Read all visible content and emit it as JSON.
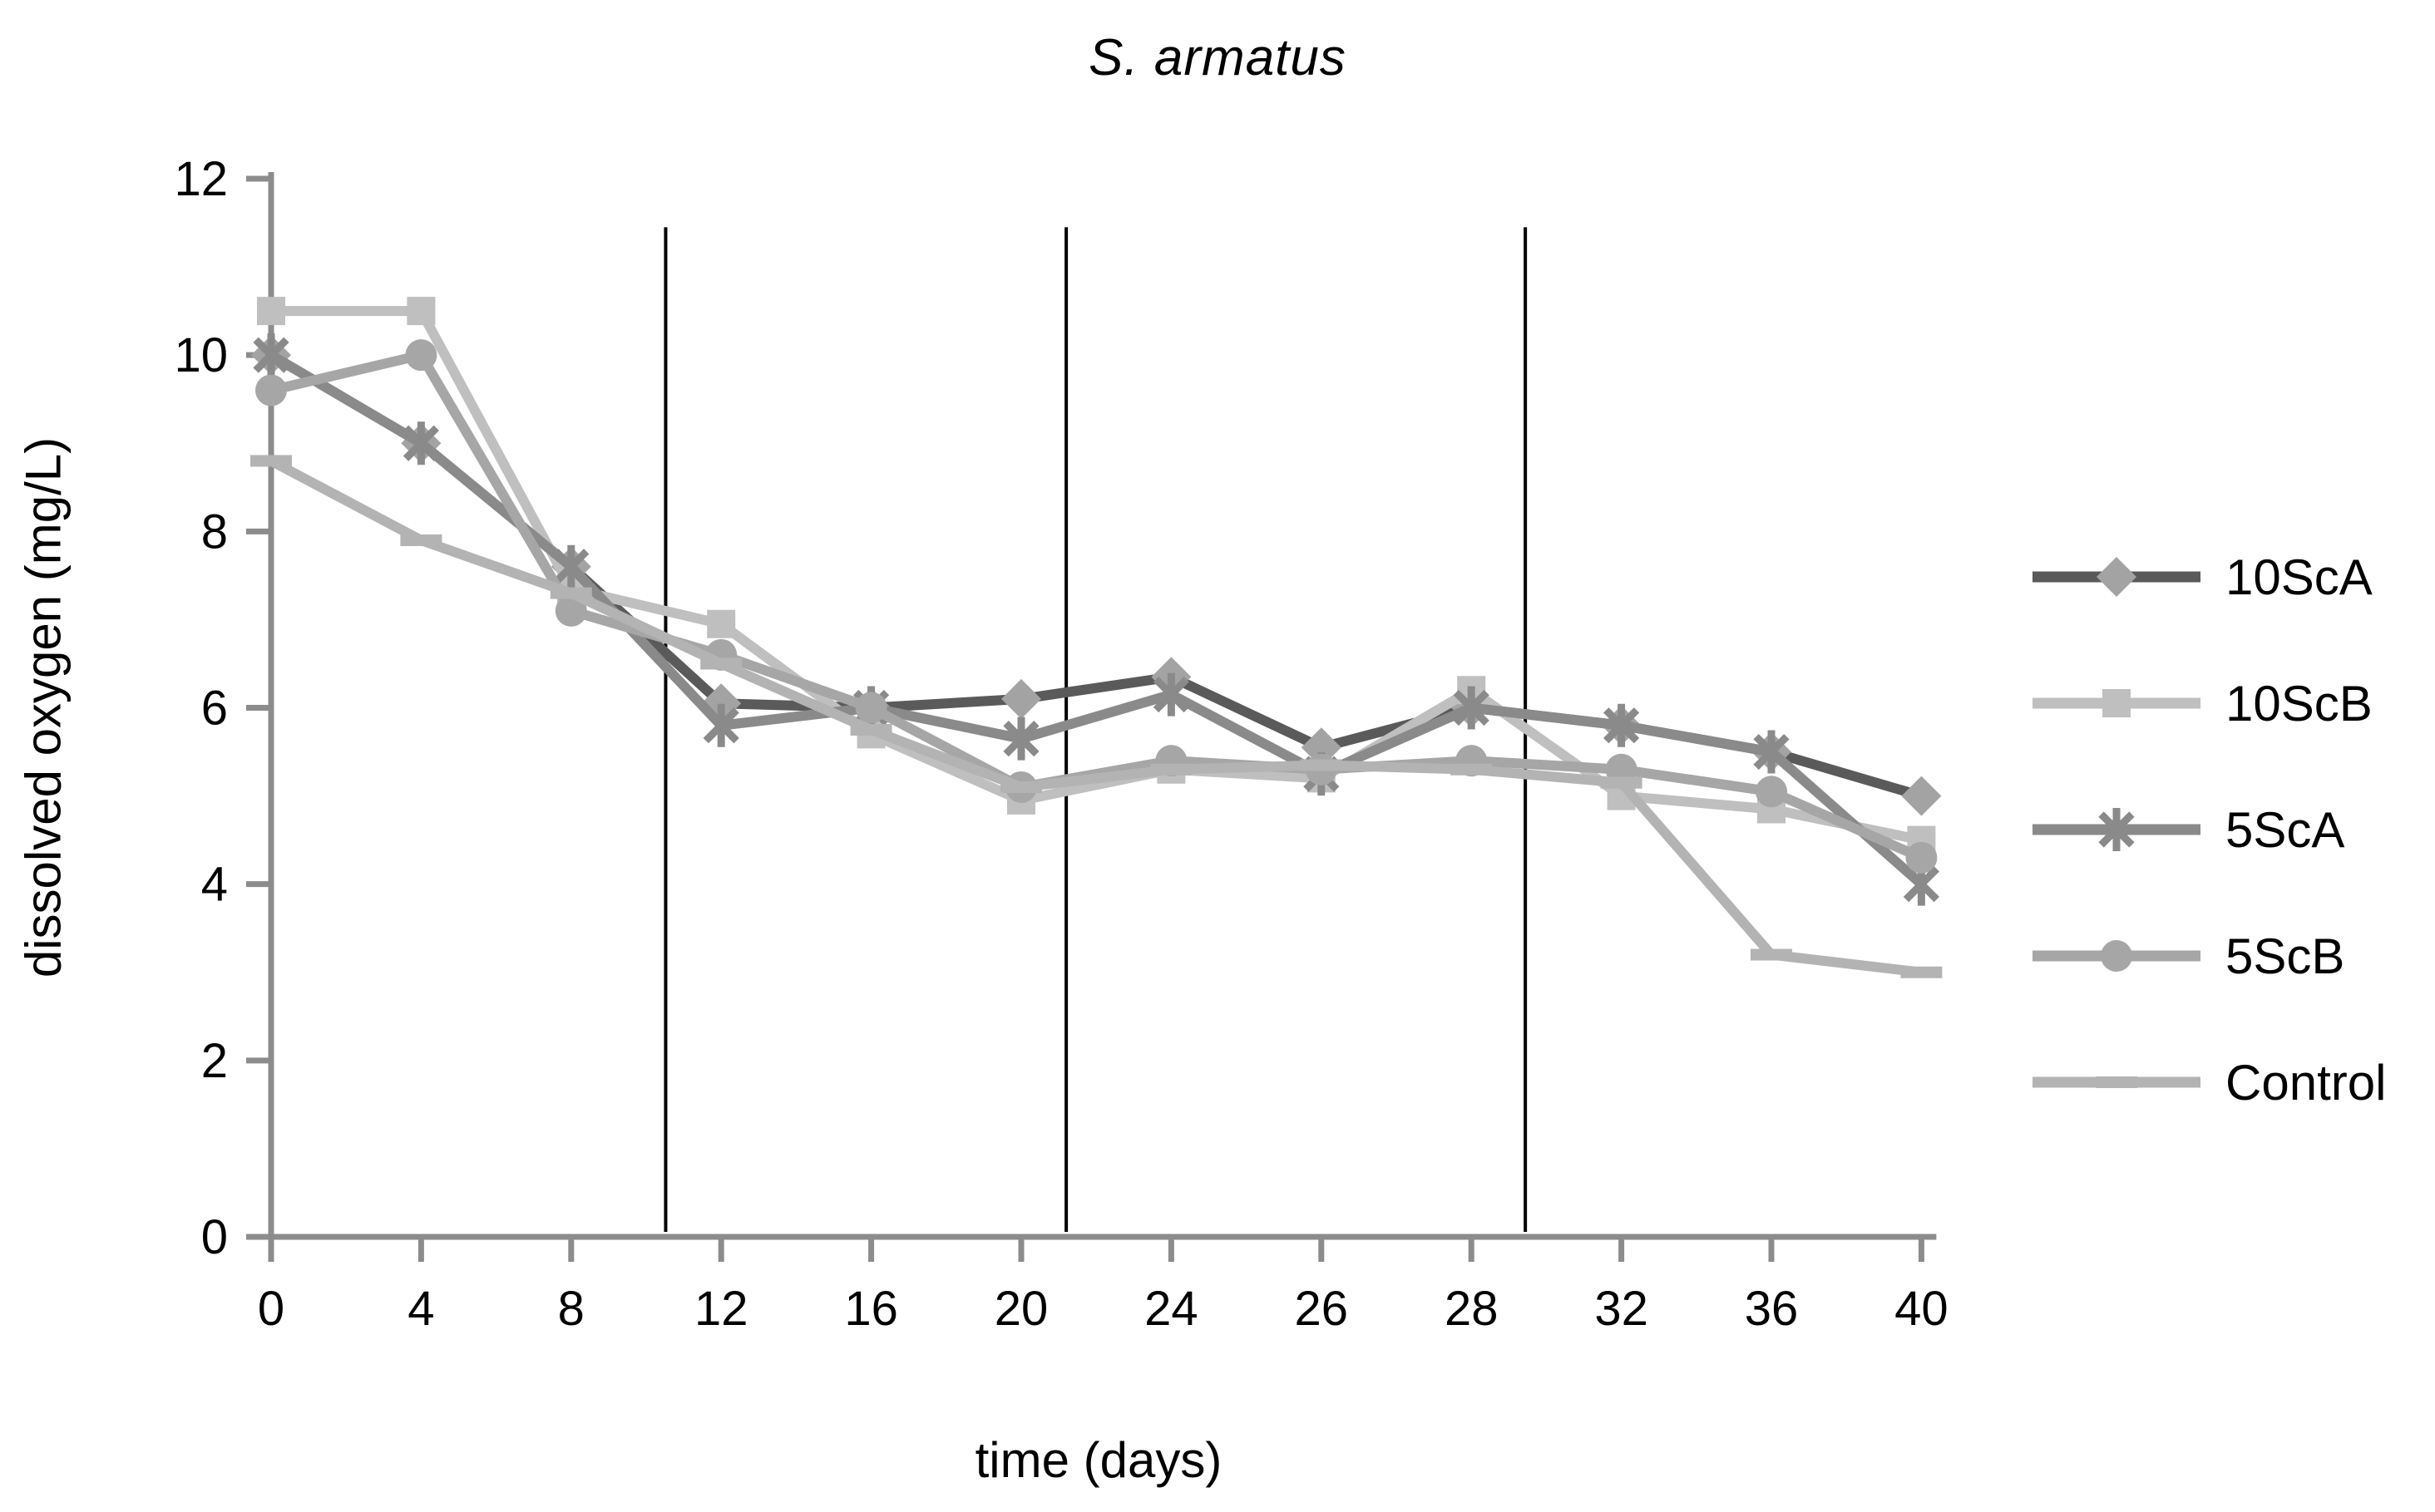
{
  "chart_data": {
    "type": "line",
    "title": "S. armatus",
    "xlabel": "time (days)",
    "ylabel": "dissolved oxygen (mg/L)",
    "categories": [
      "0",
      "4",
      "8",
      "12",
      "16",
      "20",
      "24",
      "26",
      "28",
      "32",
      "36",
      "40"
    ],
    "x_axis_mode": "categorical",
    "ylim": [
      0,
      12
    ],
    "ytick_step": 2,
    "grid": false,
    "legend_position": "right",
    "axis_color": "#8c8c8c",
    "text_color": "#000000",
    "separator_color": "#000000",
    "separator_positions_index": [
      2.63,
      5.3,
      8.36
    ],
    "series": [
      {
        "name": "10ScA",
        "marker": "diamond",
        "line_color": "#5a5a5a",
        "marker_color": "#a3a3a3",
        "values": [
          10.0,
          9.0,
          7.6,
          6.05,
          6.0,
          6.1,
          6.35,
          5.55,
          6.0,
          5.8,
          5.5,
          5.0
        ]
      },
      {
        "name": "10ScB",
        "marker": "square",
        "line_color": "#bfbfbf",
        "marker_color": "#bfbfbf",
        "values": [
          10.5,
          10.5,
          7.35,
          6.95,
          5.7,
          4.95,
          5.3,
          5.2,
          6.2,
          5.0,
          4.85,
          4.5
        ]
      },
      {
        "name": "5ScA",
        "marker": "star",
        "line_color": "#8a8a8a",
        "marker_color": "#8a8a8a",
        "values": [
          10.0,
          9.0,
          7.6,
          5.8,
          6.0,
          5.65,
          6.15,
          5.25,
          6.0,
          5.8,
          5.5,
          4.0
        ]
      },
      {
        "name": "5ScB",
        "marker": "circle",
        "line_color": "#a6a6a6",
        "marker_color": "#a6a6a6",
        "values": [
          9.6,
          10.0,
          7.1,
          6.6,
          6.0,
          5.1,
          5.4,
          5.3,
          5.4,
          5.3,
          5.05,
          4.3
        ]
      },
      {
        "name": "Control",
        "marker": "dash",
        "line_color": "#b3b3b3",
        "marker_color": "#b3b3b3",
        "values": [
          8.8,
          7.9,
          7.3,
          6.5,
          5.75,
          5.1,
          5.3,
          5.35,
          5.3,
          5.15,
          3.2,
          3.0
        ]
      }
    ]
  }
}
